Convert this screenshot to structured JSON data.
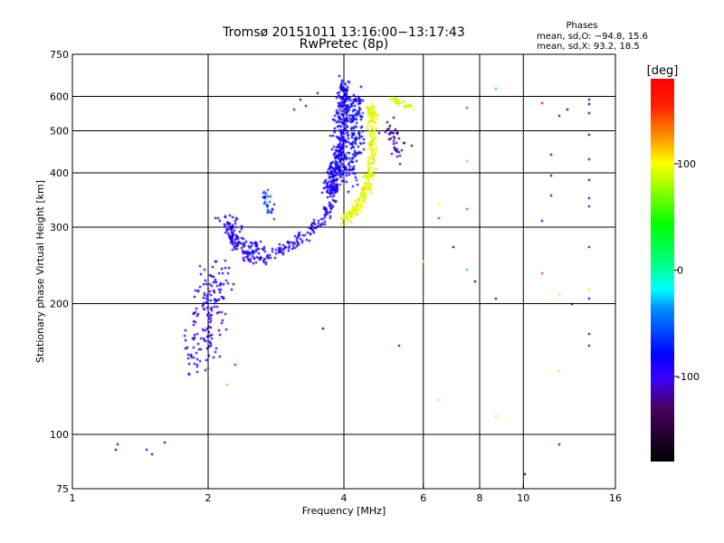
{
  "chart_data": {
    "type": "scatter",
    "title": "Tromsø 20151011 13:16:00−13:17:43",
    "subtitle": "RwPretec (8p)",
    "stats": {
      "heading": "Phases",
      "line_o": "mean, sd,O:  −94.8, 15.6",
      "line_x": "mean, sd,X:  93.2, 18.5"
    },
    "xlabel": "Frequency [MHz]",
    "ylabel": "Stationary phase Virtual Height [km]",
    "xscale": "log",
    "yscale": "log",
    "xlim": [
      1,
      16
    ],
    "ylim": [
      75,
      750
    ],
    "xticks": [
      {
        "v": 1,
        "label": "1"
      },
      {
        "v": 2,
        "label": "2"
      },
      {
        "v": 4,
        "label": "4"
      },
      {
        "v": 6,
        "label": "6"
      },
      {
        "v": 8,
        "label": "8"
      },
      {
        "v": 10,
        "label": "10"
      },
      {
        "v": 16,
        "label": "16"
      }
    ],
    "yticks": [
      {
        "v": 75,
        "label": "75"
      },
      {
        "v": 100,
        "label": "100"
      },
      {
        "v": 200,
        "label": "200"
      },
      {
        "v": 300,
        "label": "300"
      },
      {
        "v": 400,
        "label": "400"
      },
      {
        "v": 500,
        "label": "500"
      },
      {
        "v": 600,
        "label": "600"
      },
      {
        "v": 750,
        "label": "750"
      }
    ],
    "xgrid": [
      2,
      4,
      6,
      8,
      10
    ],
    "ygrid": [
      100,
      200,
      300,
      400,
      500,
      600
    ],
    "colorbar": {
      "label": "[deg]",
      "range": [
        -180,
        180
      ],
      "ticks": [
        {
          "v": 100,
          "label": "100"
        },
        {
          "v": 0,
          "label": "0"
        },
        {
          "v": -100,
          "label": "-100"
        }
      ]
    },
    "traces": [
      {
        "name": "low-F cluster",
        "path": [
          [
            1.85,
            140
          ],
          [
            1.95,
            165
          ],
          [
            2.0,
            190
          ],
          [
            2.05,
            220
          ],
          [
            2.1,
            240
          ]
        ],
        "spread_f": 0.08,
        "spread_h": 0.06,
        "n": 170,
        "phase": -105,
        "phase_sd": 20
      },
      {
        "name": "F1 hook",
        "path": [
          [
            2.2,
            300
          ],
          [
            2.3,
            275
          ],
          [
            2.45,
            255
          ],
          [
            2.7,
            255
          ],
          [
            3.0,
            270
          ],
          [
            3.3,
            290
          ],
          [
            3.6,
            315
          ],
          [
            3.8,
            345
          ]
        ],
        "spread_f": 0.03,
        "spread_h": 0.03,
        "n": 200,
        "phase": -105,
        "phase_sd": 15
      },
      {
        "name": "F1 cusp spread",
        "path": [
          [
            2.2,
            310
          ],
          [
            2.3,
            285
          ],
          [
            2.5,
            270
          ],
          [
            2.7,
            265
          ]
        ],
        "spread_f": 0.05,
        "spread_h": 0.05,
        "n": 80,
        "phase": -100,
        "phase_sd": 20
      },
      {
        "name": "O trace",
        "path": [
          [
            3.7,
            360
          ],
          [
            3.85,
            400
          ],
          [
            3.95,
            460
          ],
          [
            4.0,
            540
          ],
          [
            4.0,
            640
          ]
        ],
        "spread_f": 0.04,
        "spread_h": 0.04,
        "n": 420,
        "phase": -100,
        "phase_sd": 18
      },
      {
        "name": "O spread",
        "path": [
          [
            4.1,
            380
          ],
          [
            4.2,
            450
          ],
          [
            4.25,
            520
          ],
          [
            4.3,
            600
          ]
        ],
        "spread_f": 0.04,
        "spread_h": 0.05,
        "n": 160,
        "phase": -95,
        "phase_sd": 25
      },
      {
        "name": "X trace",
        "path": [
          [
            4.0,
            310
          ],
          [
            4.3,
            335
          ],
          [
            4.5,
            370
          ],
          [
            4.6,
            420
          ],
          [
            4.65,
            500
          ],
          [
            4.6,
            570
          ]
        ],
        "spread_f": 0.025,
        "spread_h": 0.03,
        "n": 280,
        "phase": 95,
        "phase_sd": 18
      },
      {
        "name": "X upper",
        "path": [
          [
            5.1,
            595
          ],
          [
            5.4,
            575
          ],
          [
            5.7,
            565
          ]
        ],
        "spread_f": 0.02,
        "spread_h": 0.01,
        "n": 30,
        "phase": 90,
        "phase_sd": 10
      },
      {
        "name": "patch 2.7MHz",
        "path": [
          [
            2.65,
            360
          ],
          [
            2.75,
            340
          ],
          [
            2.75,
            320
          ]
        ],
        "spread_f": 0.03,
        "spread_h": 0.03,
        "n": 25,
        "phase": -80,
        "phase_sd": 30
      },
      {
        "name": "diffuse 5MHz",
        "path": [
          [
            4.9,
            520
          ],
          [
            5.1,
            470
          ],
          [
            5.4,
            440
          ]
        ],
        "spread_f": 0.05,
        "spread_h": 0.05,
        "n": 40,
        "phase": -120,
        "phase_sd": 30
      }
    ],
    "points": [
      [
        1.25,
        92,
        -100
      ],
      [
        1.26,
        95,
        -105
      ],
      [
        1.46,
        92,
        -110
      ],
      [
        1.5,
        90,
        -100
      ],
      [
        1.6,
        96,
        -100
      ],
      [
        2.2,
        130,
        120
      ],
      [
        2.3,
        145,
        175
      ],
      [
        3.6,
        175,
        -150
      ],
      [
        5.3,
        160,
        -90
      ],
      [
        10.1,
        81,
        -150
      ],
      [
        3.3,
        570,
        -110
      ],
      [
        3.5,
        610,
        -120
      ],
      [
        3.2,
        590,
        -130
      ],
      [
        3.1,
        560,
        -110
      ],
      [
        6.0,
        250,
        110
      ],
      [
        6.5,
        340,
        100
      ],
      [
        6.5,
        315,
        -60
      ],
      [
        6.5,
        120,
        110
      ],
      [
        7.0,
        270,
        -150
      ],
      [
        7.5,
        565,
        -60
      ],
      [
        7.5,
        425,
        120
      ],
      [
        7.5,
        330,
        -50
      ],
      [
        7.5,
        240,
        -40
      ],
      [
        7.8,
        225,
        -150
      ],
      [
        8.7,
        625,
        -40
      ],
      [
        8.7,
        205,
        -130
      ],
      [
        8.7,
        110,
        110
      ],
      [
        11.0,
        580,
        170
      ],
      [
        11.0,
        310,
        -110
      ],
      [
        11.0,
        235,
        150
      ],
      [
        11.5,
        440,
        -110
      ],
      [
        11.5,
        395,
        -110
      ],
      [
        11.5,
        355,
        -100
      ],
      [
        12.0,
        210,
        90
      ],
      [
        12.0,
        140,
        90
      ],
      [
        12.0,
        95,
        -110
      ],
      [
        12.0,
        540,
        -120
      ],
      [
        12.5,
        560,
        -140
      ],
      [
        12.8,
        200,
        -160
      ],
      [
        14.0,
        590,
        -110
      ],
      [
        14.0,
        550,
        -100
      ],
      [
        14.0,
        490,
        -100
      ],
      [
        14.0,
        430,
        -110
      ],
      [
        14.0,
        385,
        -100
      ],
      [
        14.0,
        350,
        -105
      ],
      [
        14.0,
        335,
        -110
      ],
      [
        14.0,
        270,
        -110
      ],
      [
        14.0,
        205,
        -100
      ],
      [
        14.0,
        170,
        -110
      ],
      [
        14.0,
        160,
        -115
      ],
      [
        14.0,
        215,
        90
      ],
      [
        14.0,
        575,
        -150
      ]
    ]
  }
}
